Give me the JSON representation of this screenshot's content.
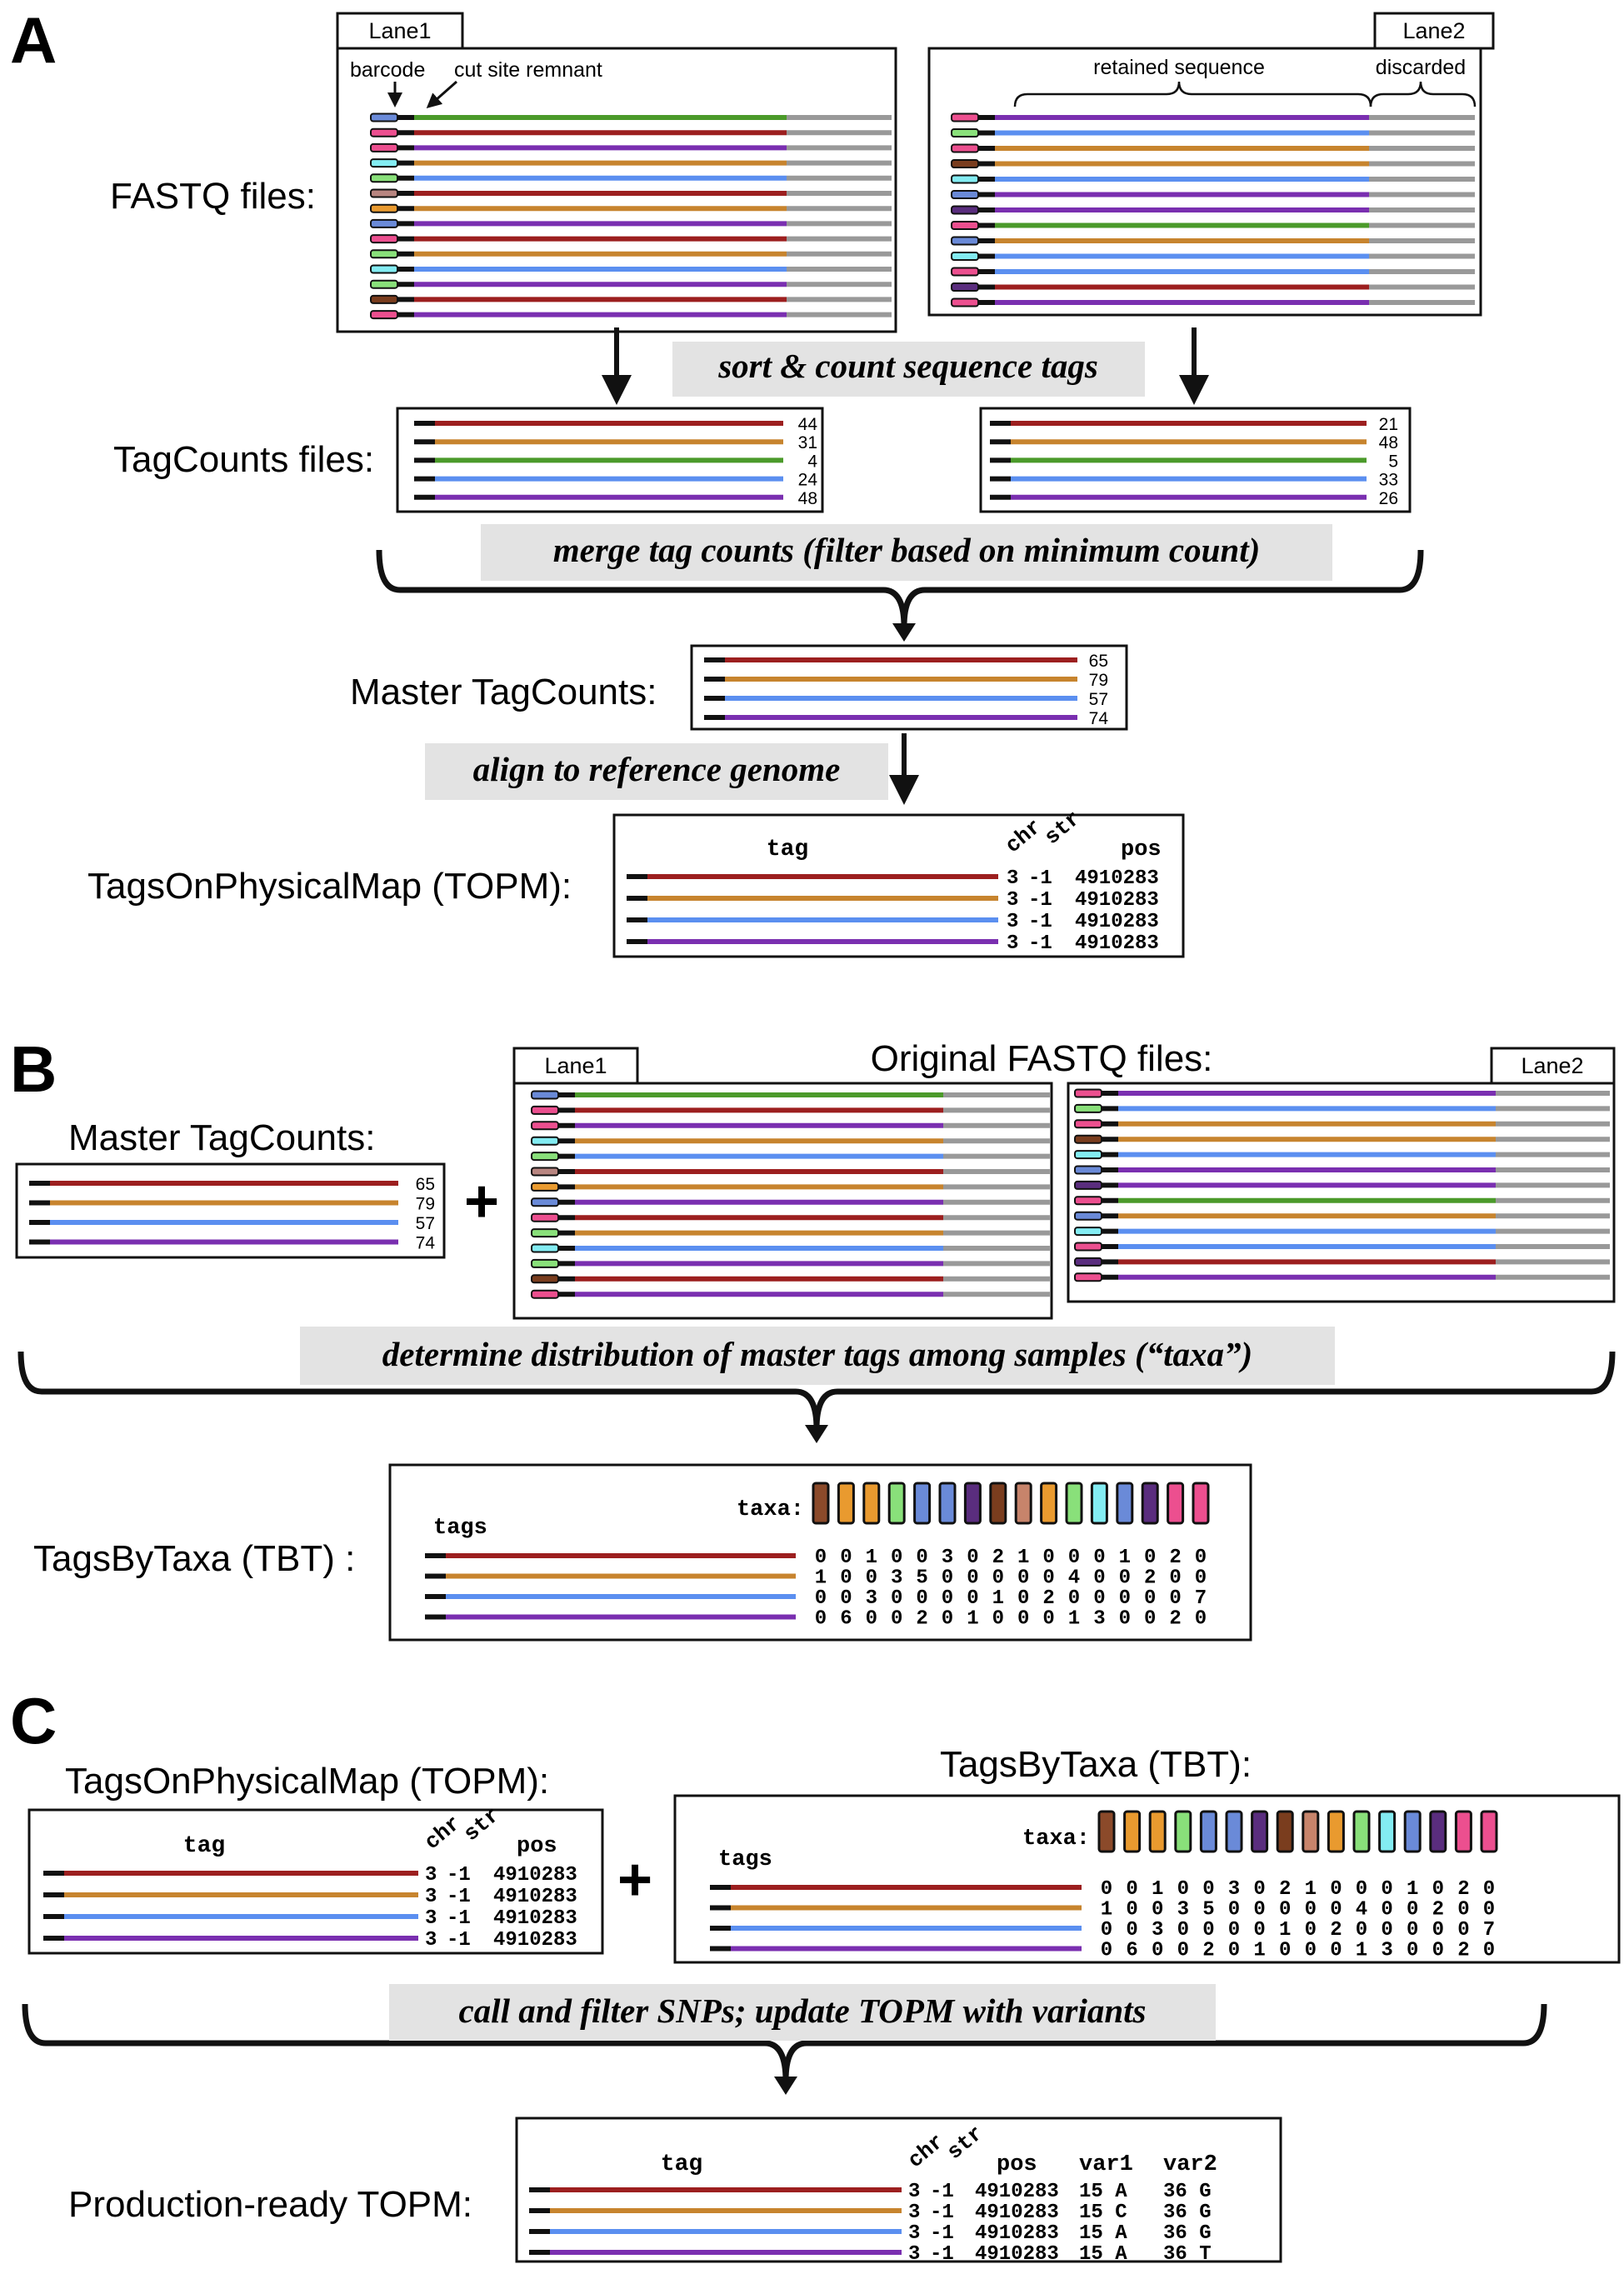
{
  "colors": {
    "red": "#9c1f1f",
    "orange": "#c7842e",
    "green": "#4b9a2a",
    "blue": "#5b8ff0",
    "purple": "#7a2fb0",
    "gray": "#999999",
    "black": "#111111",
    "step_bg": "#e3e3e3",
    "barcodes": [
      "#ec4f8f",
      "#6a8ad8",
      "#89e07a",
      "#83ecf2",
      "#b88580",
      "#e99a2f",
      "#5a2d7e",
      "#7a3d1e"
    ]
  },
  "panel_a": {
    "letter": "A",
    "fastq_label": "FASTQ files:",
    "lane1": "Lane1",
    "lane2": "Lane2",
    "barcode_label": "barcode",
    "cut_site_label": "cut site remnant",
    "retained_label": "retained sequence",
    "discarded_label": "discarded",
    "step1": "sort & count sequence tags",
    "tagcounts_label": "TagCounts files:",
    "tagcounts_left": [
      "44",
      "31",
      "4",
      "24",
      "48"
    ],
    "tagcounts_right": [
      "21",
      "48",
      "5",
      "33",
      "26"
    ],
    "step2": "merge tag counts (filter based on minimum count)",
    "master_label": "Master TagCounts:",
    "master_counts": [
      "65",
      "79",
      "57",
      "74"
    ],
    "step3": "align to reference genome",
    "topm_label": "TagsOnPhysicalMap (TOPM):",
    "topm_header": {
      "tag": "tag",
      "chr": "chr",
      "str": "str",
      "pos": "pos"
    },
    "topm_rows": [
      {
        "chr": "3",
        "str": "-1",
        "pos": "4910283"
      },
      {
        "chr": "3",
        "str": "-1",
        "pos": "4910283"
      },
      {
        "chr": "3",
        "str": "-1",
        "pos": "4910283"
      },
      {
        "chr": "3",
        "str": "-1",
        "pos": "4910283"
      }
    ]
  },
  "panel_b": {
    "letter": "B",
    "master_label": "Master TagCounts:",
    "master_counts": [
      "65",
      "79",
      "57",
      "74"
    ],
    "original_label": "Original FASTQ files:",
    "lane1": "Lane1",
    "lane2": "Lane2",
    "step": "determine distribution of master tags among samples (“taxa”)",
    "tbt_label": "TagsByTaxa (TBT) :",
    "tags_header": "tags",
    "taxa_header": "taxa:",
    "tbt_rows": [
      "0 0 1 0 0 3 0 2 1 0 0 0 1 0 2 0",
      "1 0 0 3 5 0 0 0 0 0 4 0 0 2 0 0",
      "0 0 3 0 0 0 0 1 0 2 0 0 0 0 0 7",
      "0 6 0 0 2 0 1 0 0 0 1 3 0 0 2 0"
    ]
  },
  "panel_c": {
    "letter": "C",
    "topm_label": "TagsOnPhysicalMap (TOPM):",
    "topm_header": {
      "tag": "tag",
      "chr": "chr",
      "str": "str",
      "pos": "pos"
    },
    "topm_rows": [
      {
        "chr": "3",
        "str": "-1",
        "pos": "4910283"
      },
      {
        "chr": "3",
        "str": "-1",
        "pos": "4910283"
      },
      {
        "chr": "3",
        "str": "-1",
        "pos": "4910283"
      },
      {
        "chr": "3",
        "str": "-1",
        "pos": "4910283"
      }
    ],
    "tbt_label": "TagsByTaxa (TBT):",
    "tags_header": "tags",
    "taxa_header": "taxa:",
    "tbt_rows": [
      "0 0 1 0 0 3 0 2 1 0 0 0 1 0 2 0",
      "1 0 0 3 5 0 0 0 0 0 4 0 0 2 0 0",
      "0 0 3 0 0 0 0 1 0 2 0 0 0 0 0 7",
      "0 6 0 0 2 0 1 0 0 0 1 3 0 0 2 0"
    ],
    "step": "call and filter SNPs; update TOPM with variants",
    "final_label": "Production-ready TOPM:",
    "final_header": {
      "tag": "tag",
      "chr": "chr",
      "str": "str",
      "pos": "pos",
      "var1": "var1",
      "var2": "var2"
    },
    "final_rows": [
      {
        "chr": "3",
        "str": "-1",
        "pos": "4910283",
        "var1": "15 A",
        "var2": "36 G"
      },
      {
        "chr": "3",
        "str": "-1",
        "pos": "4910283",
        "var1": "15 C",
        "var2": "36 G"
      },
      {
        "chr": "3",
        "str": "-1",
        "pos": "4910283",
        "var1": "15 A",
        "var2": "36 G"
      },
      {
        "chr": "3",
        "str": "-1",
        "pos": "4910283",
        "var1": "15 A",
        "var2": "36 T"
      }
    ]
  }
}
